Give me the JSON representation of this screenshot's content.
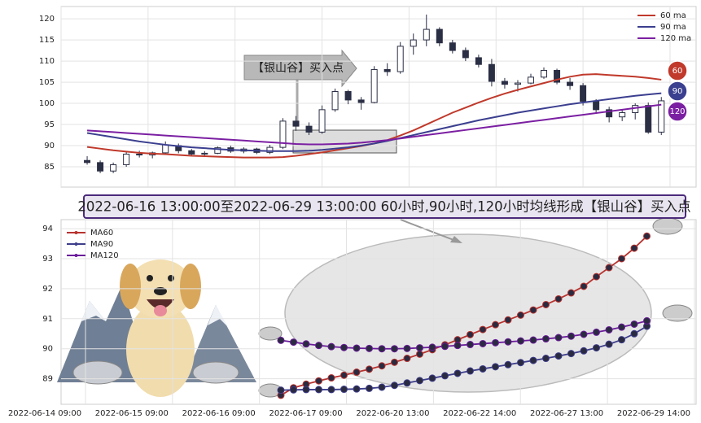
{
  "chart_data": [
    {
      "type": "candlestick",
      "annotation": "【银山谷】买入点",
      "end_labels": [
        "60",
        "90",
        "120"
      ],
      "xlim": [
        -6,
        140
      ],
      "xticks": [
        {
          "value": -6,
          "label": "2022-06-14 09:00"
        },
        {
          "value": 14,
          "label": "2022-06-15 09:00"
        },
        {
          "value": 34,
          "label": "2022-06-16 09:00"
        },
        {
          "value": 54,
          "label": "2022-06-17 09:00"
        },
        {
          "value": 74,
          "label": "2022-06-20 13:00"
        },
        {
          "value": 94,
          "label": "2022-06-22 14:00"
        },
        {
          "value": 114,
          "label": "2022-06-27 13:00"
        },
        {
          "value": 134,
          "label": "2022-06-29 14:00"
        }
      ],
      "ylim": [
        80.2,
        122.9
      ],
      "yticks": [
        85,
        90,
        95,
        100,
        105,
        110,
        115,
        120
      ],
      "grid": true,
      "legend": "upper right",
      "x": [
        0,
        3,
        6,
        9,
        12,
        15,
        18,
        21,
        24,
        27,
        30,
        33,
        36,
        39,
        42,
        45,
        48,
        51,
        54,
        57,
        60,
        63,
        66,
        69,
        72,
        75,
        78,
        81,
        84,
        87,
        90,
        93,
        96,
        99,
        102,
        105,
        108,
        111,
        114,
        117,
        120,
        123,
        126,
        129,
        132
      ],
      "open": [
        86.5,
        86,
        84,
        85.5,
        88,
        87.8,
        88.3,
        90,
        88.8,
        88,
        88.2,
        89.5,
        88.7,
        89.2,
        88.4,
        89.6,
        95.8,
        94.6,
        93.2,
        98.5,
        102.8,
        100.8,
        100.2,
        108,
        107.5,
        113.5,
        115,
        117.5,
        114.3,
        112.5,
        110.8,
        109.2,
        105.2,
        104.5,
        104.8,
        106.2,
        107.8,
        105,
        104.2,
        100.5,
        98.5,
        96.8,
        97.8,
        99.5,
        93.2
      ],
      "high": [
        87.5,
        86.5,
        86,
        88.5,
        88.8,
        88.6,
        91,
        90.5,
        89.2,
        88.7,
        89.8,
        90,
        89.6,
        89.5,
        90.2,
        96.5,
        97,
        95.5,
        99.5,
        103.5,
        103.2,
        101.5,
        108.8,
        109.5,
        114.5,
        116.5,
        121,
        118,
        115,
        113.2,
        111.5,
        110.5,
        106,
        105.5,
        107,
        108.5,
        108.2,
        106,
        104.8,
        101,
        99.2,
        98.5,
        100,
        100.2,
        101.5
      ],
      "low": [
        85.5,
        83.5,
        83.5,
        85,
        87.2,
        87,
        87.8,
        88.2,
        87.5,
        87.3,
        88,
        88.3,
        88.2,
        88,
        88,
        89.2,
        93.5,
        92.5,
        92.8,
        98,
        99.8,
        98.5,
        100,
        106.5,
        107,
        111.5,
        113.5,
        113.5,
        111.8,
        110,
        108.5,
        104,
        103.5,
        102.8,
        104.5,
        105.8,
        104.5,
        103.2,
        99.5,
        97.5,
        95.5,
        95.8,
        96.2,
        92.8,
        92.5
      ],
      "close": [
        86,
        84,
        85.5,
        88,
        87.8,
        88.3,
        90.2,
        88.8,
        88,
        88.2,
        89.5,
        88.7,
        89.2,
        88.4,
        89.6,
        95.8,
        94.6,
        93.2,
        98.5,
        102.8,
        100.8,
        100.2,
        108,
        107.5,
        113.5,
        115,
        117.5,
        114.3,
        112.5,
        110.8,
        109.2,
        105.2,
        104.5,
        104.8,
        106.2,
        107.8,
        105,
        104.2,
        100.5,
        98.5,
        96.8,
        97.8,
        99.5,
        93.2,
        100.6
      ],
      "series": [
        {
          "name": "60 ma",
          "color": "#c0392b",
          "values": [
            89.7,
            89.3,
            88.9,
            88.6,
            88.3,
            88.1,
            88.0,
            87.8,
            87.6,
            87.5,
            87.4,
            87.3,
            87.2,
            87.2,
            87.2,
            87.3,
            87.6,
            88.0,
            88.4,
            88.9,
            89.4,
            89.9,
            90.5,
            91.3,
            92.4,
            93.6,
            95.0,
            96.4,
            97.8,
            99.0,
            100.2,
            101.3,
            102.3,
            103.2,
            104.0,
            104.8,
            105.6,
            106.3,
            106.8,
            106.9,
            106.7,
            106.5,
            106.3,
            106.0,
            105.6
          ]
        },
        {
          "name": "90 ma",
          "color": "#3b3f8f",
          "values": [
            93.0,
            92.5,
            92.0,
            91.5,
            91.0,
            90.6,
            90.2,
            89.9,
            89.6,
            89.4,
            89.2,
            89.0,
            88.9,
            88.8,
            88.7,
            88.7,
            88.7,
            88.8,
            89.0,
            89.3,
            89.6,
            90.0,
            90.5,
            91.1,
            91.8,
            92.5,
            93.2,
            93.9,
            94.6,
            95.3,
            96.0,
            96.6,
            97.2,
            97.8,
            98.3,
            98.8,
            99.3,
            99.8,
            100.2,
            100.6,
            101.0,
            101.4,
            101.8,
            102.1,
            102.4
          ]
        },
        {
          "name": "120 ma",
          "color": "#7b1fa2",
          "values": [
            93.6,
            93.4,
            93.2,
            93.0,
            92.8,
            92.6,
            92.4,
            92.2,
            92.0,
            91.8,
            91.6,
            91.4,
            91.2,
            91.0,
            90.8,
            90.6,
            90.4,
            90.3,
            90.3,
            90.4,
            90.5,
            90.7,
            91.0,
            91.3,
            91.7,
            92.1,
            92.5,
            92.9,
            93.3,
            93.7,
            94.1,
            94.5,
            94.9,
            95.3,
            95.7,
            96.1,
            96.5,
            96.9,
            97.3,
            97.7,
            98.1,
            98.5,
            98.9,
            99.3,
            99.7
          ]
        }
      ]
    },
    {
      "type": "line",
      "title": "2022-06-16 13:00:00至2022-06-29 13:00:00 60小时,90小时,120小时均线形成【银山谷】买入点",
      "ylim": [
        88.15,
        94.3
      ],
      "yticks": [
        89,
        90,
        91,
        92,
        93,
        94
      ],
      "grid": true,
      "legend": "upper left",
      "series": [
        {
          "name": "MA60",
          "color": "#b8332f",
          "values": [
            88.45,
            88.7,
            88.82,
            88.93,
            89.03,
            89.12,
            89.22,
            89.32,
            89.43,
            89.55,
            89.68,
            89.82,
            89.97,
            90.13,
            90.3,
            90.47,
            90.64,
            90.8,
            90.96,
            91.12,
            91.29,
            91.47,
            91.66,
            91.86,
            92.08,
            92.4,
            92.7,
            93.0,
            93.35,
            93.75
          ]
        },
        {
          "name": "MA90",
          "color": "#3d3d8c",
          "values": [
            88.62,
            88.63,
            88.64,
            88.64,
            88.64,
            88.65,
            88.66,
            88.68,
            88.72,
            88.78,
            88.86,
            88.94,
            89.02,
            89.1,
            89.18,
            89.26,
            89.33,
            89.4,
            89.47,
            89.54,
            89.61,
            89.68,
            89.76,
            89.84,
            89.93,
            90.03,
            90.15,
            90.3,
            90.5,
            90.75
          ]
        },
        {
          "name": "MA120",
          "color": "#6a1b9a",
          "values": [
            90.28,
            90.22,
            90.16,
            90.11,
            90.07,
            90.04,
            90.02,
            90.01,
            90.0,
            90.0,
            90.01,
            90.03,
            90.05,
            90.08,
            90.11,
            90.14,
            90.17,
            90.2,
            90.23,
            90.26,
            90.29,
            90.33,
            90.37,
            90.42,
            90.48,
            90.55,
            90.63,
            90.72,
            90.82,
            90.93
          ]
        }
      ]
    }
  ]
}
